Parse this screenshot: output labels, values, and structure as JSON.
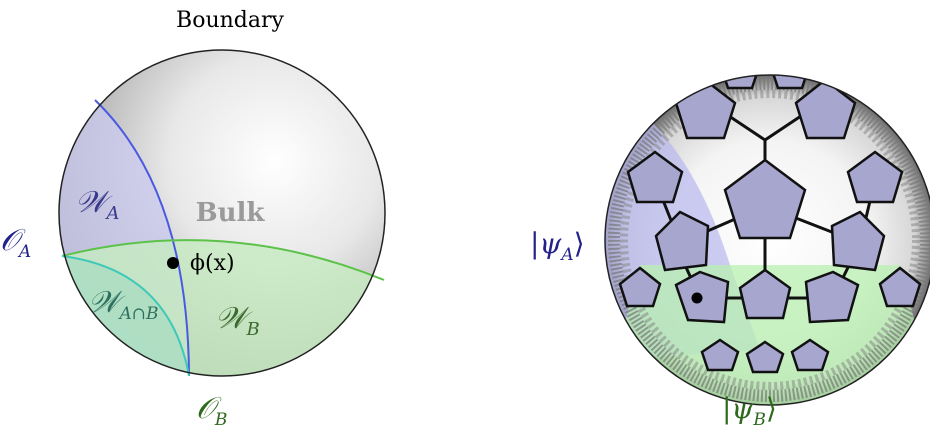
{
  "left_panel": {
    "boundary_label": "Boundary",
    "bulk_label": "Bulk",
    "wedge_a": {
      "main": "𝒲",
      "sub": "A"
    },
    "wedge_b": {
      "main": "𝒲",
      "sub": "B"
    },
    "wedge_ab": {
      "main": "𝒲",
      "sub": "A∩B"
    },
    "operator_a": {
      "main": "𝒪",
      "sub": "A"
    },
    "operator_b": {
      "main": "𝒪",
      "sub": "B"
    },
    "field": "ϕ(x)"
  },
  "right_panel": {
    "state_a": {
      "open": "|ψ",
      "sub": "A",
      "close": "⟩"
    },
    "state_b": {
      "open": "|ψ",
      "sub": "B",
      "close": "⟩"
    }
  },
  "colors": {
    "wedge_a_fill": "#c9c9ef",
    "wedge_a_stroke": "#4a5ae0",
    "wedge_b_fill": "#c6ebbf",
    "wedge_b_stroke": "#5cc24a",
    "wedge_ab_fill": "#a7dcc2",
    "wedge_ab_stroke": "#3fc9b8",
    "tile_fill": "#a6a6cf",
    "operator_a_color": "#22228a",
    "operator_b_color": "#2e6a1d",
    "wedge_a_text": "#3a3a8a",
    "wedge_b_text": "#3c6a2e",
    "wedge_ab_text": "#2e7060",
    "bulk_text": "#9a9a9a"
  }
}
